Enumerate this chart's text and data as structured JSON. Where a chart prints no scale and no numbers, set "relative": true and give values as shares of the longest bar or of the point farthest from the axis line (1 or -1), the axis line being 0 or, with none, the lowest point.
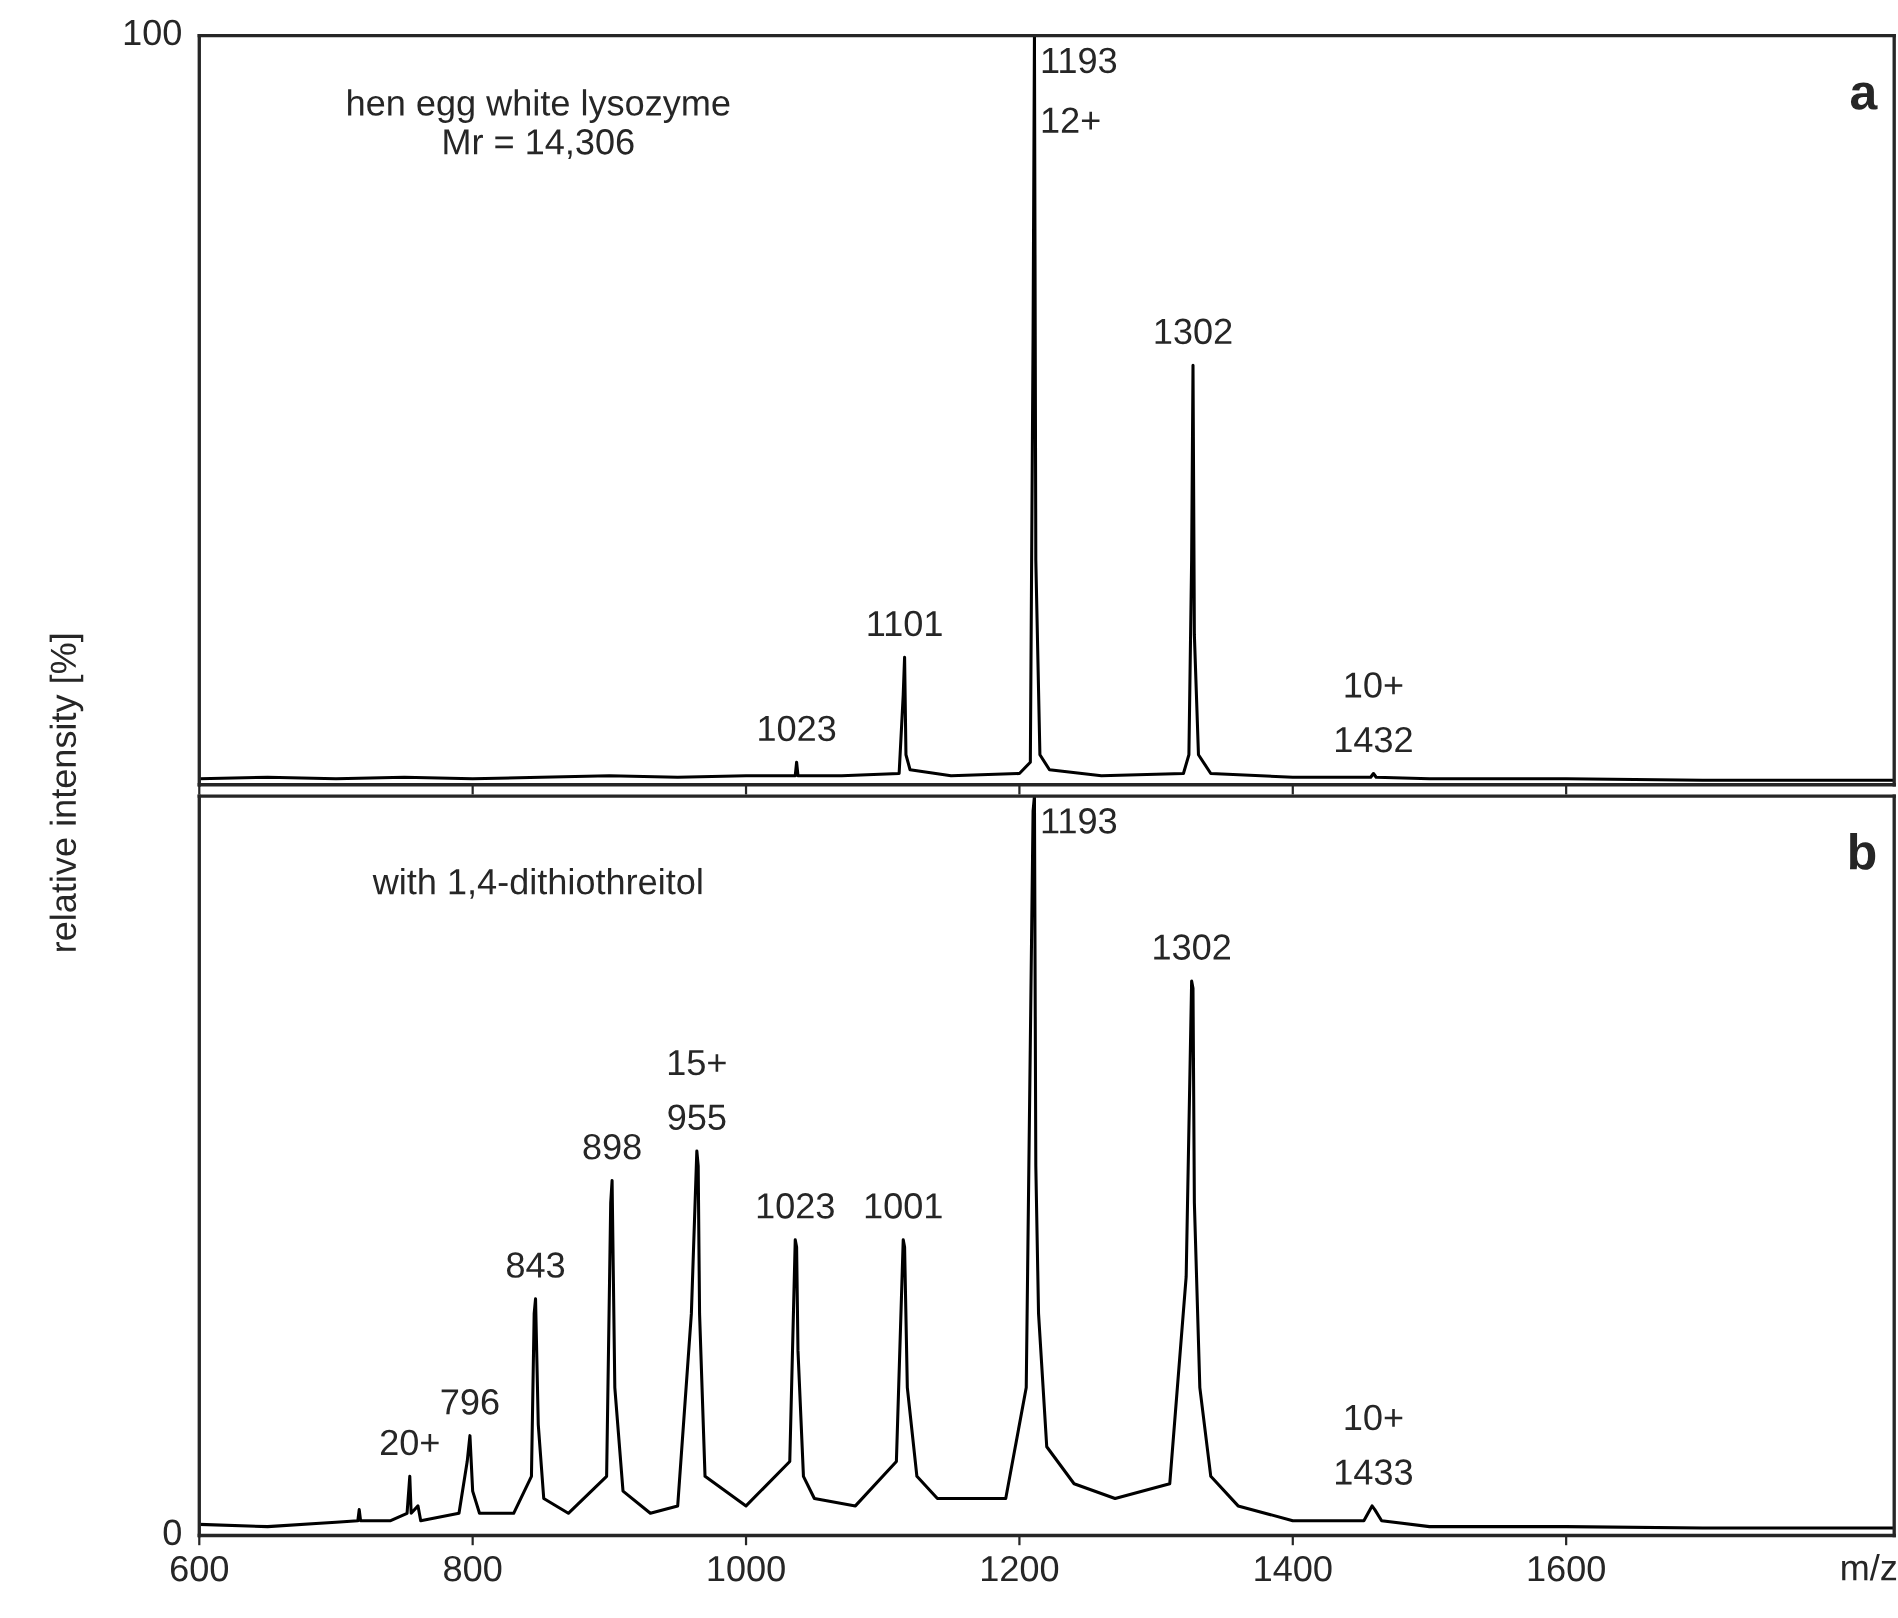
{
  "chart_data": [
    {
      "type": "line",
      "relative": true,
      "ylabel": "relative intensity [%]",
      "xlim": [
        600,
        1840
      ],
      "xticks": [
        600,
        800,
        1000,
        1200,
        1400,
        1600
      ],
      "tick_labels": false,
      "marker": "none",
      "line_style": "solid",
      "series": [
        {
          "color": "#000000",
          "x": [
            600,
            650,
            700,
            750,
            800,
            850,
            900,
            950,
            1000,
            1030,
            1036,
            1037,
            1038,
            1070,
            1112,
            1115,
            1116,
            1117,
            1120,
            1150,
            1200,
            1208,
            1210,
            1211,
            1212,
            1215,
            1222,
            1260,
            1320,
            1324,
            1326,
            1327,
            1328,
            1331,
            1340,
            1400,
            1457,
            1459,
            1461,
            1500,
            1600,
            1700,
            1840
          ],
          "values": [
            0.008,
            0.01,
            0.008,
            0.01,
            0.008,
            0.01,
            0.012,
            0.01,
            0.012,
            0.012,
            0.012,
            0.03,
            0.012,
            0.012,
            0.015,
            0.12,
            0.17,
            0.04,
            0.02,
            0.012,
            0.015,
            0.03,
            0.6,
            1.0,
            0.3,
            0.04,
            0.02,
            0.012,
            0.015,
            0.04,
            0.3,
            0.56,
            0.2,
            0.04,
            0.015,
            0.01,
            0.01,
            0.015,
            0.01,
            0.008,
            0.008,
            0.006,
            0.006
          ]
        }
      ],
      "annotations": [
        "hen egg white lysozyme\nMr = 14,306",
        "a",
        "100",
        {
          "text": "1193\n12+",
          "x": 1211,
          "y": 1.0
        },
        {
          "text": "1302",
          "x": 1327,
          "y": 0.56
        },
        {
          "text": "1101",
          "x": 1116,
          "y": 0.17
        },
        {
          "text": "1023",
          "x": 1037,
          "y": 0.03
        },
        {
          "text": "10+\n1432",
          "x": 1459,
          "y": 0.015
        }
      ]
    },
    {
      "type": "line",
      "relative": true,
      "xlabel": "m/z",
      "xlim": [
        600,
        1840
      ],
      "xticks": [
        600,
        800,
        1000,
        1200,
        1400,
        1600
      ],
      "tick_labels": "x",
      "marker": "none",
      "line_style": "solid",
      "series": [
        {
          "color": "#000000",
          "x": [
            600,
            650,
            700,
            716,
            717,
            718,
            740,
            752,
            754,
            755,
            760,
            762,
            790,
            796,
            798,
            800,
            805,
            830,
            843,
            845,
            846,
            848,
            852,
            870,
            898,
            901,
            902,
            904,
            910,
            930,
            950,
            960,
            964,
            965,
            966,
            970,
            1000,
            1032,
            1036,
            1037,
            1038,
            1042,
            1050,
            1080,
            1110,
            1115,
            1116,
            1118,
            1125,
            1140,
            1190,
            1205,
            1210,
            1211,
            1212,
            1214,
            1220,
            1240,
            1270,
            1310,
            1322,
            1326,
            1327,
            1328,
            1332,
            1340,
            1360,
            1400,
            1452,
            1458,
            1460,
            1465,
            1500,
            1600,
            1700,
            1840
          ],
          "values": [
            0.015,
            0.012,
            0.018,
            0.02,
            0.035,
            0.02,
            0.02,
            0.03,
            0.08,
            0.03,
            0.04,
            0.02,
            0.03,
            0.1,
            0.135,
            0.06,
            0.03,
            0.03,
            0.08,
            0.3,
            0.32,
            0.15,
            0.05,
            0.03,
            0.08,
            0.45,
            0.48,
            0.2,
            0.06,
            0.03,
            0.04,
            0.3,
            0.52,
            0.5,
            0.3,
            0.08,
            0.04,
            0.1,
            0.4,
            0.39,
            0.25,
            0.08,
            0.05,
            0.04,
            0.1,
            0.4,
            0.39,
            0.2,
            0.08,
            0.05,
            0.05,
            0.2,
            0.98,
            1.0,
            0.5,
            0.3,
            0.12,
            0.07,
            0.05,
            0.07,
            0.35,
            0.75,
            0.74,
            0.45,
            0.2,
            0.08,
            0.04,
            0.02,
            0.02,
            0.04,
            0.035,
            0.02,
            0.012,
            0.012,
            0.01,
            0.01
          ]
        }
      ],
      "annotations": [
        "with 1,4-dithiothreitol",
        "b",
        "0",
        {
          "text": "20+",
          "x": 754,
          "y": 0.08
        },
        {
          "text": "796",
          "x": 798,
          "y": 0.135
        },
        {
          "text": "843",
          "x": 846,
          "y": 0.32
        },
        {
          "text": "898",
          "x": 902,
          "y": 0.48
        },
        {
          "text": "15+\n955",
          "x": 964,
          "y": 0.52
        },
        {
          "text": "1023",
          "x": 1036,
          "y": 0.4
        },
        {
          "text": "1001",
          "x": 1115,
          "y": 0.4
        },
        {
          "text": "1193",
          "x": 1211,
          "y": 1.0
        },
        {
          "text": "1302",
          "x": 1326,
          "y": 0.75
        },
        {
          "text": "10+\n1433",
          "x": 1459,
          "y": 0.04
        }
      ]
    }
  ]
}
